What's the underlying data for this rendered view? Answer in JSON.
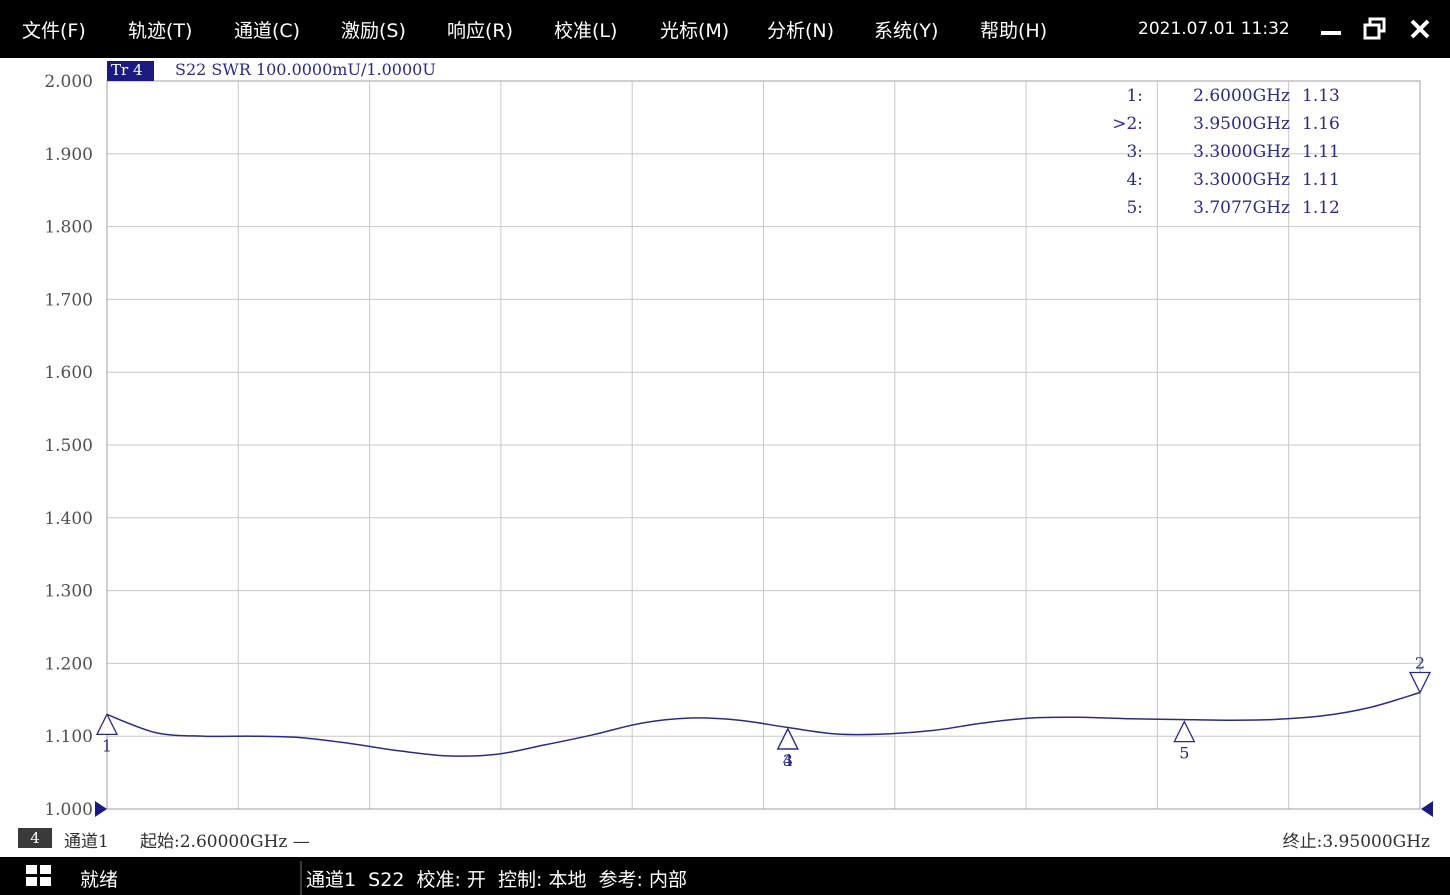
{
  "menu": {
    "items": [
      {
        "label": "文件(F)"
      },
      {
        "label": "轨迹(T)"
      },
      {
        "label": "通道(C)"
      },
      {
        "label": "激励(S)"
      },
      {
        "label": "响应(R)"
      },
      {
        "label": "校准(L)"
      },
      {
        "label": "光标(M)"
      },
      {
        "label": "分析(N)"
      },
      {
        "label": "系统(Y)"
      },
      {
        "label": "帮助(H)"
      }
    ],
    "datetime": "2021.07.01 11:32"
  },
  "window_controls": {
    "minimize": "minimize-icon",
    "restore": "restore-icon",
    "close": "close-icon"
  },
  "trace": {
    "tag": "Tr 4",
    "info": "S22 SWR 100.0000mU/1.0000U",
    "color": "#2a2a8a"
  },
  "markers": [
    {
      "label": "1:",
      "freq": "2.6000GHz",
      "value": "1.13"
    },
    {
      "label": ">2:",
      "freq": "3.9500GHz",
      "value": "1.16"
    },
    {
      "label": "3:",
      "freq": "3.3000GHz",
      "value": "1.11"
    },
    {
      "label": "4:",
      "freq": "3.3000GHz",
      "value": "1.11"
    },
    {
      "label": "5:",
      "freq": "3.7077GHz",
      "value": "1.12"
    }
  ],
  "chart_data": {
    "type": "line",
    "title": "",
    "xlabel": "",
    "ylabel": "",
    "xlim": [
      2.6,
      3.95
    ],
    "ylim": [
      1.0,
      2.0
    ],
    "y_ticks": [
      "2.000",
      "1.900",
      "1.800",
      "1.700",
      "1.600",
      "1.500",
      "1.400",
      "1.300",
      "1.200",
      "1.100",
      "1.000"
    ],
    "x_divisions": 10,
    "grid": true,
    "series": [
      {
        "x": [
          2.6,
          2.65,
          2.7,
          2.75,
          2.8,
          2.85,
          2.9,
          2.95,
          3.0,
          3.05,
          3.1,
          3.15,
          3.2,
          3.25,
          3.3,
          3.35,
          3.4,
          3.45,
          3.5,
          3.55,
          3.6,
          3.65,
          3.7,
          3.75,
          3.8,
          3.85,
          3.9,
          3.95
        ],
        "y": [
          1.13,
          1.105,
          1.1,
          1.1,
          1.098,
          1.09,
          1.08,
          1.073,
          1.075,
          1.088,
          1.102,
          1.118,
          1.125,
          1.122,
          1.112,
          1.103,
          1.103,
          1.108,
          1.118,
          1.125,
          1.126,
          1.124,
          1.123,
          1.122,
          1.123,
          1.128,
          1.14,
          1.16
        ]
      }
    ],
    "marker_points": [
      {
        "id": "1",
        "x": 2.6,
        "y": 1.13,
        "dir": "up"
      },
      {
        "id": "2",
        "x": 3.95,
        "y": 1.16,
        "dir": "down"
      },
      {
        "id": "3",
        "x": 3.3,
        "y": 1.11,
        "dir": "up"
      },
      {
        "id": "4",
        "x": 3.3,
        "y": 1.11,
        "dir": "up"
      },
      {
        "id": "5",
        "x": 3.7077,
        "y": 1.12,
        "dir": "up"
      }
    ]
  },
  "channel_bar": {
    "badge": "4",
    "channel": "通道1",
    "start": "起始:2.60000GHz —",
    "stop": "终止:3.95000GHz"
  },
  "taskbar": {
    "ready": "就绪",
    "status": "通道1  S22  校准: 开  控制: 本地  参考: 内部"
  }
}
